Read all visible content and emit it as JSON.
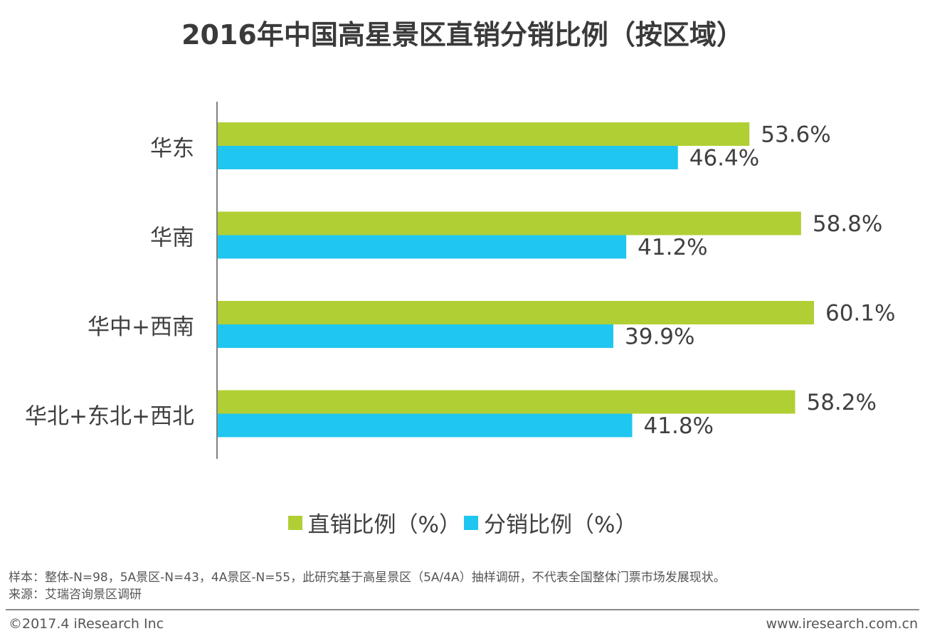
{
  "title": "2016年中国高星景区直销分销比例（按区域）",
  "chart_data": {
    "type": "bar",
    "orientation": "horizontal",
    "categories": [
      "华东",
      "华南",
      "华中+西南",
      "华北+东北+西北"
    ],
    "series": [
      {
        "name": "直销比例（%）",
        "color": "#b0cf34",
        "values": [
          53.6,
          58.8,
          60.1,
          58.2
        ],
        "labels": [
          "53.6%",
          "58.8%",
          "60.1%",
          "58.2%"
        ]
      },
      {
        "name": "分销比例（%）",
        "color": "#1fc6ef",
        "values": [
          46.4,
          41.2,
          39.9,
          41.8
        ],
        "labels": [
          "46.4%",
          "41.2%",
          "39.9%",
          "41.8%"
        ]
      }
    ],
    "xlim": [
      0,
      70
    ],
    "grid": false,
    "legend_position": "bottom"
  },
  "legend": {
    "items": [
      {
        "label": "直销比例（%）",
        "color": "#b0cf34"
      },
      {
        "label": "分销比例（%）",
        "color": "#1fc6ef"
      }
    ]
  },
  "footnote": {
    "sample": "样本：整体-N=98，5A景区-N=43，4A景区-N=55，此研究基于高星景区（5A/4A）抽样调研，不代表全国整体门票市场发展现状。",
    "source": "来源：艾瑞咨询景区调研"
  },
  "footer": {
    "copyright": "©2017.4 iResearch Inc",
    "website": "www.iresearch.com.cn"
  }
}
